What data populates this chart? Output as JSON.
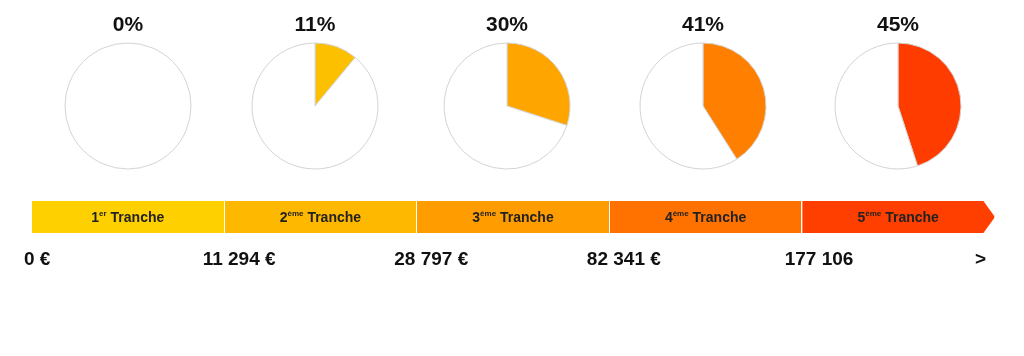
{
  "chart_data": [
    {
      "type": "pie",
      "title": "0%",
      "categories": [
        null,
        null
      ],
      "values": [
        0,
        100
      ],
      "colors": [
        "#f8c800",
        "#ffffff"
      ]
    },
    {
      "type": "pie",
      "title": "11%",
      "categories": [
        null,
        null
      ],
      "values": [
        11,
        89
      ],
      "colors": [
        "#fcc000",
        "#ffffff"
      ]
    },
    {
      "type": "pie",
      "title": "30%",
      "categories": [
        null,
        null
      ],
      "values": [
        30,
        70
      ],
      "colors": [
        "#ffa500",
        "#ffffff"
      ]
    },
    {
      "type": "pie",
      "title": "41%",
      "categories": [
        null,
        null
      ],
      "values": [
        41,
        59
      ],
      "colors": [
        "#ff7f00",
        "#ffffff"
      ]
    },
    {
      "type": "pie",
      "title": "45%",
      "categories": [
        null,
        null
      ],
      "values": [
        45,
        55
      ],
      "colors": [
        "#ff3c00",
        "#ffffff"
      ]
    },
    {
      "type": "other",
      "categories": [
        "1$^{er}$ Tranche",
        "2$^{ème}$ Tranche",
        "3$^{ème}$ Tranche",
        "4$^{ème}$ Tranche",
        "5$^{ème}$ Tranche"
      ],
      "colors": [
        "#ffd000",
        "#ffb800",
        "#ff9c00",
        "#ff7200",
        "#ff3f00"
      ],
      "annotations": [
        "0 €",
        "11 294 €",
        "28 797 €",
        "82 341 €",
        "177 106",
        ">"
      ]
    }
  ]
}
